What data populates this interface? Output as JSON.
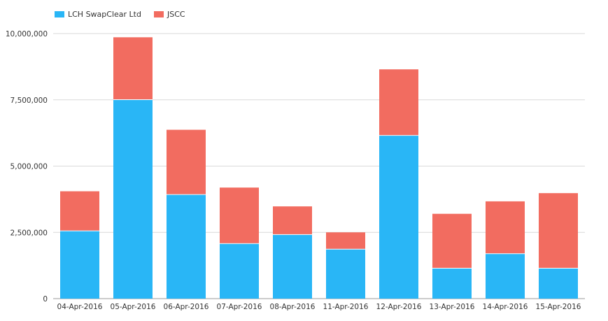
{
  "chart_data": {
    "type": "bar",
    "stacked": true,
    "title": "",
    "xlabel": "",
    "ylabel": "",
    "categories": [
      "04-Apr-2016",
      "05-Apr-2016",
      "06-Apr-2016",
      "07-Apr-2016",
      "08-Apr-2016",
      "11-Apr-2016",
      "12-Apr-2016",
      "13-Apr-2016",
      "14-Apr-2016",
      "15-Apr-2016"
    ],
    "series": [
      {
        "name": "LCH SwapClear Ltd",
        "color": "#29b6f6",
        "values": [
          2570000,
          7520000,
          3940000,
          2090000,
          2430000,
          1880000,
          6170000,
          1160000,
          1710000,
          1160000
        ]
      },
      {
        "name": "JSCC",
        "color": "#f26c60",
        "values": [
          1480000,
          2340000,
          2430000,
          2100000,
          1050000,
          620000,
          2480000,
          2040000,
          1960000,
          2820000
        ]
      }
    ],
    "ylim": [
      0,
      10000000
    ],
    "yticks": [
      0,
      2500000,
      5000000,
      7500000,
      10000000
    ],
    "ytick_labels": [
      "0",
      "2,500,000",
      "5,000,000",
      "7,500,000",
      "10,000,000"
    ],
    "grid": true,
    "legend_position": "top-left"
  }
}
